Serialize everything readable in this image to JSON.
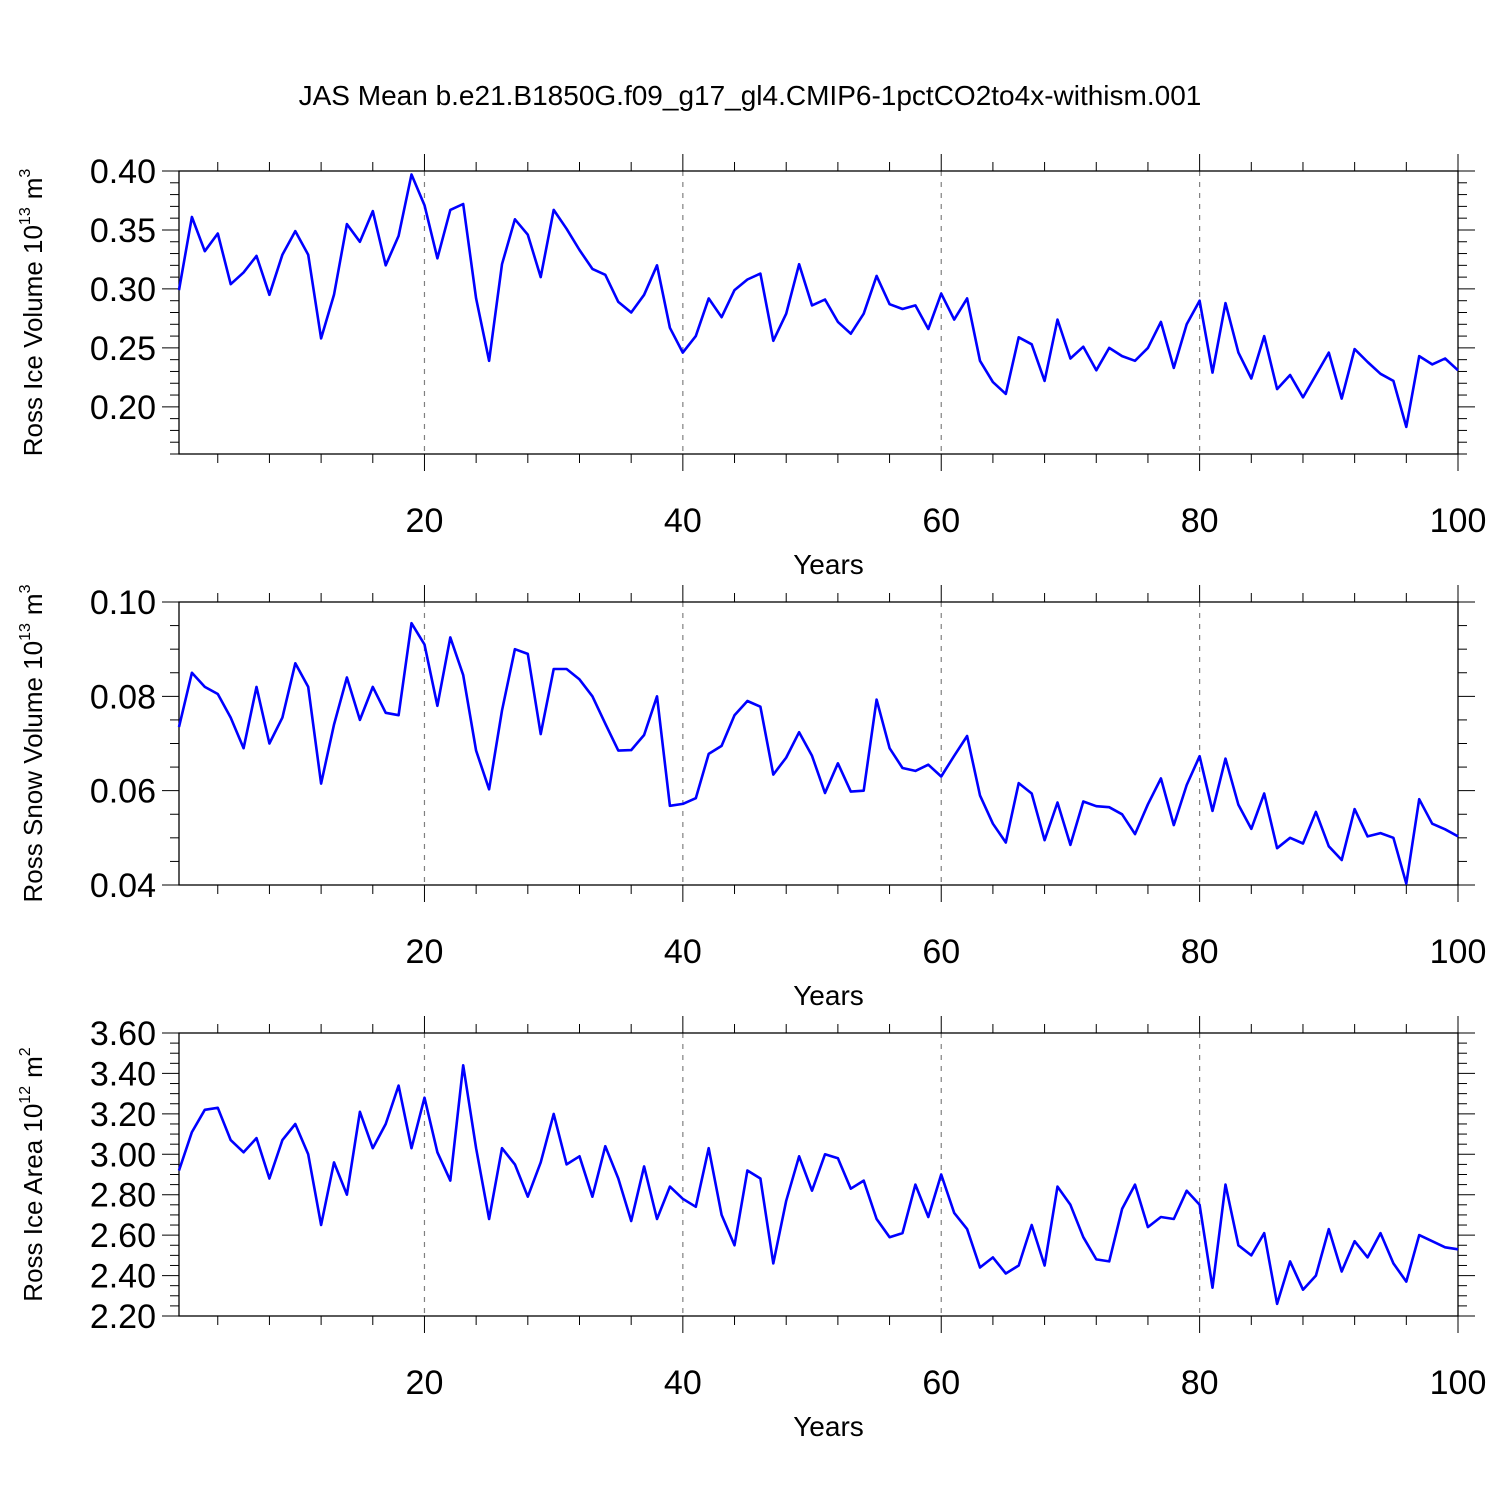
{
  "title": "JAS Mean b.e21.B1850G.f09_g17_gl4.CMIP6-1pctCO2to4x-withism.001",
  "colors": {
    "line": "#0000ff",
    "axis": "#000000",
    "grid": "#808080",
    "background": "#ffffff"
  },
  "chart_data": [
    {
      "type": "line",
      "name": "ice-volume",
      "xlabel": "Years",
      "ylabel_text": "Ross Ice Volume 10",
      "ylabel_exponent": "13",
      "ylabel_unit": "m",
      "ylabel_unit_exponent": "3",
      "xlim": [
        1,
        100
      ],
      "ylim": [
        0.16,
        0.4
      ],
      "yticks": [
        0.2,
        0.25,
        0.3,
        0.35,
        0.4
      ],
      "ytick_labels": [
        "0.20",
        "0.25",
        "0.30",
        "0.35",
        "0.40"
      ],
      "yminor_step": 0.01,
      "xticks": [
        20,
        40,
        60,
        80,
        100
      ],
      "xtick_labels": [
        "20",
        "40",
        "60",
        "80",
        "100"
      ],
      "xminor_step": 4,
      "vgrid": [
        20,
        40,
        60,
        80
      ],
      "series": [
        {
          "name": "Ross Ice Volume",
          "x_start": 1,
          "values": [
            0.299,
            0.361,
            0.332,
            0.347,
            0.304,
            0.314,
            0.328,
            0.295,
            0.329,
            0.349,
            0.329,
            0.258,
            0.295,
            0.355,
            0.34,
            0.366,
            0.32,
            0.345,
            0.397,
            0.371,
            0.326,
            0.367,
            0.372,
            0.292,
            0.239,
            0.321,
            0.359,
            0.346,
            0.31,
            0.367,
            0.351,
            0.333,
            0.317,
            0.312,
            0.289,
            0.28,
            0.295,
            0.32,
            0.267,
            0.246,
            0.26,
            0.292,
            0.276,
            0.299,
            0.308,
            0.313,
            0.256,
            0.279,
            0.321,
            0.286,
            0.291,
            0.272,
            0.262,
            0.279,
            0.311,
            0.287,
            0.283,
            0.286,
            0.266,
            0.296,
            0.274,
            0.292,
            0.239,
            0.221,
            0.211,
            0.259,
            0.253,
            0.222,
            0.274,
            0.241,
            0.251,
            0.231,
            0.25,
            0.243,
            0.239,
            0.25,
            0.272,
            0.233,
            0.27,
            0.29,
            0.229,
            0.288,
            0.246,
            0.224,
            0.26,
            0.215,
            0.227,
            0.208,
            0.227,
            0.246,
            0.207,
            0.249,
            0.238,
            0.228,
            0.222,
            0.183,
            0.243,
            0.236,
            0.241,
            0.231
          ]
        }
      ]
    },
    {
      "type": "line",
      "name": "snow-volume",
      "xlabel": "Years",
      "ylabel_text": "Ross Snow Volume 10",
      "ylabel_exponent": "13",
      "ylabel_unit": "m",
      "ylabel_unit_exponent": "3",
      "xlim": [
        1,
        100
      ],
      "ylim": [
        0.04,
        0.1
      ],
      "yticks": [
        0.04,
        0.06,
        0.08,
        0.1
      ],
      "ytick_labels": [
        "0.04",
        "0.06",
        "0.08",
        "0.10"
      ],
      "yminor_step": 0.005,
      "xticks": [
        20,
        40,
        60,
        80,
        100
      ],
      "xtick_labels": [
        "20",
        "40",
        "60",
        "80",
        "100"
      ],
      "xminor_step": 4,
      "vgrid": [
        20,
        40,
        60,
        80
      ],
      "series": [
        {
          "name": "Ross Snow Volume",
          "x_start": 1,
          "values": [
            0.0735,
            0.085,
            0.082,
            0.0805,
            0.0755,
            0.069,
            0.082,
            0.07,
            0.0755,
            0.087,
            0.082,
            0.0615,
            0.074,
            0.084,
            0.075,
            0.082,
            0.0765,
            0.076,
            0.0955,
            0.091,
            0.078,
            0.0925,
            0.0845,
            0.0685,
            0.0603,
            0.077,
            0.09,
            0.089,
            0.072,
            0.0858,
            0.0858,
            0.0836,
            0.08,
            0.0742,
            0.0685,
            0.0686,
            0.0718,
            0.08,
            0.0568,
            0.0572,
            0.0584,
            0.0678,
            0.0695,
            0.076,
            0.079,
            0.0778,
            0.0634,
            0.067,
            0.0724,
            0.0674,
            0.0595,
            0.0658,
            0.0598,
            0.06,
            0.0793,
            0.069,
            0.0648,
            0.0642,
            0.0655,
            0.063,
            0.0674,
            0.0716,
            0.059,
            0.053,
            0.049,
            0.0616,
            0.0594,
            0.0495,
            0.0575,
            0.0485,
            0.0577,
            0.0567,
            0.0565,
            0.055,
            0.0508,
            0.0571,
            0.0626,
            0.0527,
            0.0612,
            0.0673,
            0.0557,
            0.0668,
            0.057,
            0.0519,
            0.0594,
            0.0478,
            0.05,
            0.0488,
            0.0555,
            0.0482,
            0.0453,
            0.0561,
            0.0503,
            0.051,
            0.05,
            0.0403,
            0.0582,
            0.053,
            0.0518,
            0.0503
          ]
        }
      ]
    },
    {
      "type": "line",
      "name": "ice-area",
      "xlabel": "Years",
      "ylabel_text": "Ross Ice Area 10",
      "ylabel_exponent": "12",
      "ylabel_unit": "m",
      "ylabel_unit_exponent": "2",
      "xlim": [
        1,
        100
      ],
      "ylim": [
        2.2,
        3.6
      ],
      "yticks": [
        2.2,
        2.4,
        2.6,
        2.8,
        3.0,
        3.2,
        3.4,
        3.6
      ],
      "ytick_labels": [
        "2.20",
        "2.40",
        "2.60",
        "2.80",
        "3.00",
        "3.20",
        "3.40",
        "3.60"
      ],
      "yminor_step": 0.05,
      "xticks": [
        20,
        40,
        60,
        80,
        100
      ],
      "xtick_labels": [
        "20",
        "40",
        "60",
        "80",
        "100"
      ],
      "xminor_step": 4,
      "vgrid": [
        20,
        40,
        60,
        80
      ],
      "series": [
        {
          "name": "Ross Ice Area",
          "x_start": 1,
          "values": [
            2.92,
            3.11,
            3.22,
            3.23,
            3.07,
            3.01,
            3.08,
            2.88,
            3.07,
            3.15,
            3.0,
            2.65,
            2.96,
            2.8,
            3.21,
            3.03,
            3.15,
            3.34,
            3.03,
            3.28,
            3.01,
            2.87,
            3.44,
            3.03,
            2.68,
            3.03,
            2.95,
            2.79,
            2.96,
            3.2,
            2.95,
            2.99,
            2.79,
            3.04,
            2.88,
            2.67,
            2.94,
            2.68,
            2.84,
            2.78,
            2.74,
            3.03,
            2.7,
            2.55,
            2.92,
            2.88,
            2.46,
            2.77,
            2.99,
            2.82,
            3.0,
            2.98,
            2.83,
            2.87,
            2.68,
            2.59,
            2.61,
            2.85,
            2.69,
            2.9,
            2.71,
            2.63,
            2.44,
            2.49,
            2.41,
            2.45,
            2.65,
            2.45,
            2.84,
            2.75,
            2.59,
            2.48,
            2.47,
            2.73,
            2.85,
            2.64,
            2.69,
            2.68,
            2.82,
            2.75,
            2.34,
            2.85,
            2.55,
            2.5,
            2.61,
            2.26,
            2.47,
            2.33,
            2.4,
            2.63,
            2.42,
            2.57,
            2.49,
            2.61,
            2.46,
            2.37,
            2.6,
            2.57,
            2.54,
            2.53
          ]
        }
      ]
    }
  ]
}
